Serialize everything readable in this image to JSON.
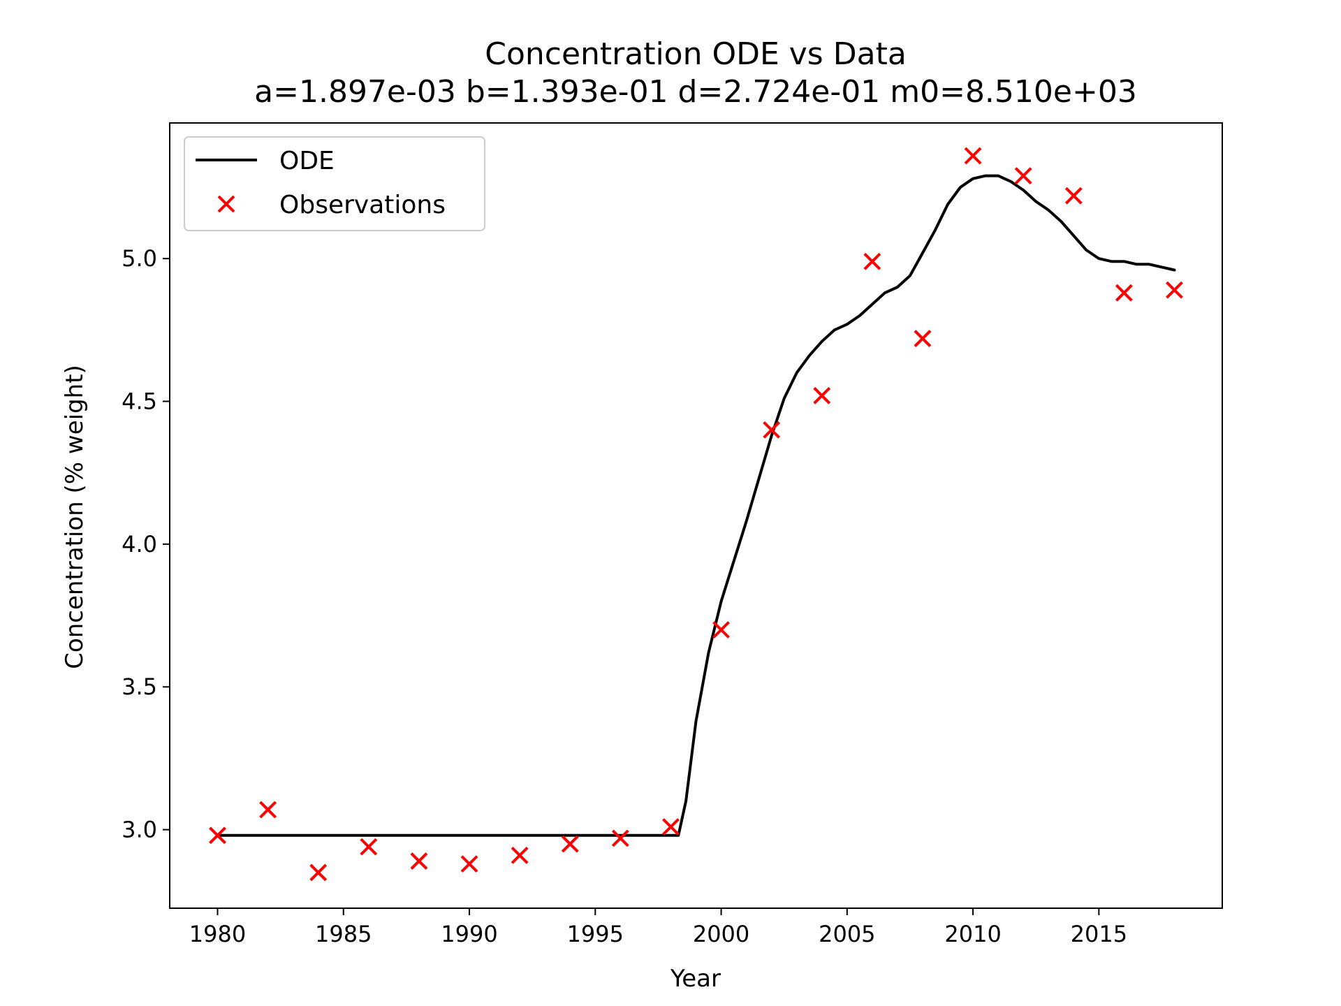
{
  "chart_data": {
    "type": "line",
    "title": "Concentration ODE vs Data",
    "subtitle": "a=1.897e-03 b=1.393e-01 d=2.724e-01 m0=8.510e+03",
    "xlabel": "Year",
    "ylabel": "Concentration (% weight)",
    "xlim": [
      1978.1,
      2019.9
    ],
    "ylim": [
      2.725,
      5.475
    ],
    "xticks": [
      1980,
      1985,
      1990,
      1995,
      2000,
      2005,
      2010,
      2015
    ],
    "xtick_labels": [
      "1980",
      "1985",
      "1990",
      "1995",
      "2000",
      "2005",
      "2010",
      "2015"
    ],
    "yticks": [
      3.0,
      3.5,
      4.0,
      4.5,
      5.0
    ],
    "ytick_labels": [
      "3.0",
      "3.5",
      "4.0",
      "4.5",
      "5.0"
    ],
    "grid": false,
    "legend_position": "top-left",
    "series": [
      {
        "name": "ODE",
        "kind": "line",
        "color": "#000000",
        "x": [
          1980,
          1985,
          1990,
          1995,
          1998.3,
          1998.6,
          1999,
          1999.5,
          2000,
          2000.5,
          2001,
          2001.5,
          2002,
          2002.5,
          2003,
          2003.5,
          2004,
          2004.5,
          2005,
          2005.5,
          2006,
          2006.5,
          2007,
          2007.5,
          2008,
          2008.5,
          2009,
          2009.5,
          2010,
          2010.5,
          2011,
          2011.5,
          2012,
          2012.5,
          2013,
          2013.5,
          2014,
          2014.5,
          2015,
          2015.5,
          2016,
          2016.5,
          2017,
          2017.5,
          2018
        ],
        "y": [
          2.98,
          2.98,
          2.98,
          2.98,
          2.98,
          3.1,
          3.38,
          3.62,
          3.8,
          3.94,
          4.08,
          4.23,
          4.38,
          4.51,
          4.6,
          4.66,
          4.71,
          4.75,
          4.77,
          4.8,
          4.84,
          4.88,
          4.9,
          4.94,
          5.02,
          5.1,
          5.19,
          5.25,
          5.28,
          5.29,
          5.29,
          5.27,
          5.24,
          5.2,
          5.17,
          5.13,
          5.08,
          5.03,
          5.0,
          4.99,
          4.99,
          4.98,
          4.98,
          4.97,
          4.96
        ]
      },
      {
        "name": "Observations",
        "kind": "scatter",
        "marker": "x",
        "color": "#ff0000",
        "x": [
          1980,
          1982,
          1984,
          1986,
          1988,
          1990,
          1992,
          1994,
          1996,
          1998,
          2000,
          2002,
          2004,
          2006,
          2008,
          2010,
          2012,
          2014,
          2016,
          2018
        ],
        "y": [
          2.98,
          3.07,
          2.85,
          2.94,
          2.89,
          2.88,
          2.91,
          2.95,
          2.97,
          3.01,
          3.7,
          4.4,
          4.52,
          4.99,
          4.72,
          5.36,
          5.29,
          5.22,
          4.88,
          4.89
        ]
      }
    ]
  }
}
